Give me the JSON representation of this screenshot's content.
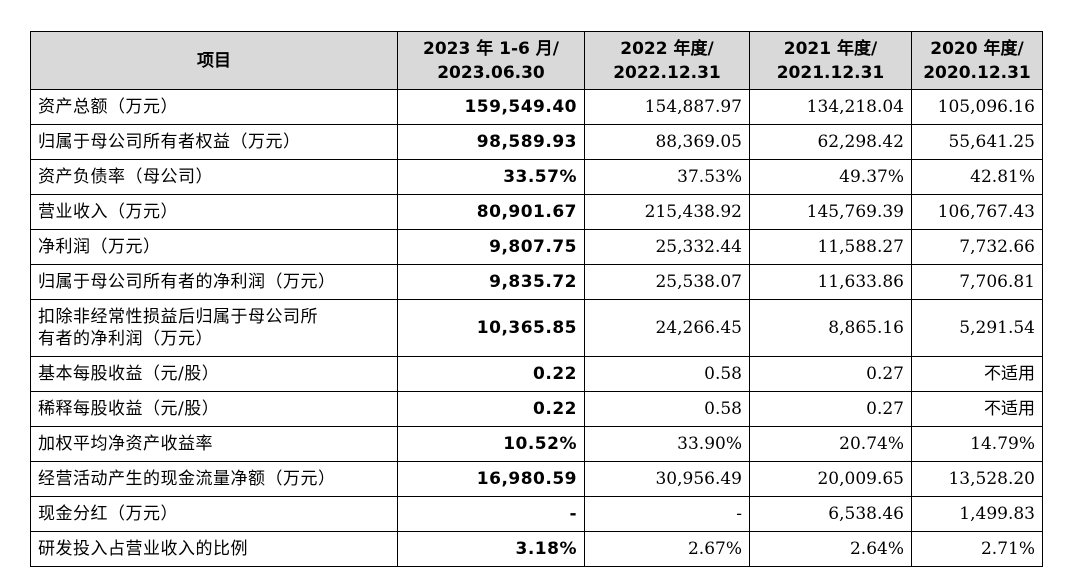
{
  "header": {
    "col0": "项目",
    "col1_line1": "2023 年 1-6 月/",
    "col1_line2": "2023.06.30",
    "col2_line1": "2022 年度/",
    "col2_line2": "2022.12.31",
    "col3_line1": "2021 年度/",
    "col3_line2": "2021.12.31",
    "col4_line1": "2020 年度/",
    "col4_line2": "2020.12.31"
  },
  "rows": [
    {
      "label": "资产总额（万元）",
      "v2023": "159,549.40",
      "v2022": "154,887.97",
      "v2021": "134,218.04",
      "v2020": "105,096.16"
    },
    {
      "label": "归属于母公司所有者权益（万元）",
      "v2023": "98,589.93",
      "v2022": "88,369.05",
      "v2021": "62,298.42",
      "v2020": "55,641.25"
    },
    {
      "label": "资产负债率（母公司）",
      "v2023": "33.57%",
      "v2022": "37.53%",
      "v2021": "49.37%",
      "v2020": "42.81%"
    },
    {
      "label": "营业收入（万元）",
      "v2023": "80,901.67",
      "v2022": "215,438.92",
      "v2021": "145,769.39",
      "v2020": "106,767.43"
    },
    {
      "label": "净利润（万元）",
      "v2023": "9,807.75",
      "v2022": "25,332.44",
      "v2021": "11,588.27",
      "v2020": "7,732.66"
    },
    {
      "label": "归属于母公司所有者的净利润（万元）",
      "v2023": "9,835.72",
      "v2022": "25,538.07",
      "v2021": "11,633.86",
      "v2020": "7,706.81"
    },
    {
      "label_line1": "扣除非经常性损益后归属于母公司所",
      "label_line2": "有者的净利润（万元）",
      "v2023": "10,365.85",
      "v2022": "24,266.45",
      "v2021": "8,865.16",
      "v2020": "5,291.54"
    },
    {
      "label": "基本每股收益（元/股）",
      "v2023": "0.22",
      "v2022": "0.58",
      "v2021": "0.27",
      "v2020": "不适用"
    },
    {
      "label": "稀释每股收益（元/股）",
      "v2023": "0.22",
      "v2022": "0.58",
      "v2021": "0.27",
      "v2020": "不适用"
    },
    {
      "label": "加权平均净资产收益率",
      "v2023": "10.52%",
      "v2022": "33.90%",
      "v2021": "20.74%",
      "v2020": "14.79%"
    },
    {
      "label": "经营活动产生的现金流量净额（万元）",
      "v2023": "16,980.59",
      "v2022": "30,956.49",
      "v2021": "20,009.65",
      "v2020": "13,528.20"
    },
    {
      "label": "现金分红（万元）",
      "v2023": "-",
      "v2022": "-",
      "v2021": "6,538.46",
      "v2020": "1,499.83"
    },
    {
      "label": "研发投入占营业收入的比例",
      "v2023": "3.18%",
      "v2022": "2.67%",
      "v2021": "2.64%",
      "v2020": "2.71%"
    }
  ]
}
